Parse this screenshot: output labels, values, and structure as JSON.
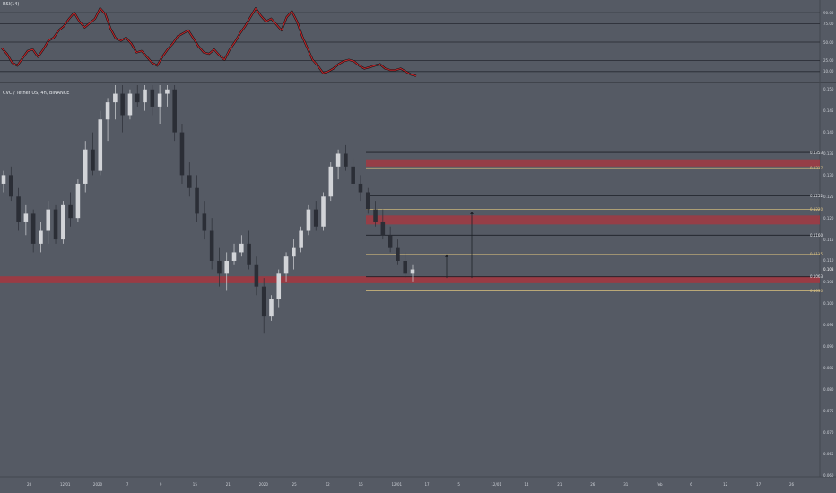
{
  "rsi_pane": {
    "title": "RSI(14)",
    "ylim": [
      0,
      100
    ],
    "levels": [
      {
        "value": 90,
        "label": "90.00"
      },
      {
        "value": 75,
        "label": "75.00"
      },
      {
        "value": 50,
        "label": "50.00"
      },
      {
        "value": 25,
        "label": "25.00"
      },
      {
        "value": 10,
        "label": "10.00"
      }
    ],
    "line_color": "#c0262c",
    "shadow_color": "#111111",
    "values": [
      42,
      34,
      22,
      18,
      28,
      38,
      40,
      30,
      40,
      52,
      56,
      66,
      72,
      82,
      90,
      78,
      70,
      76,
      82,
      96,
      88,
      68,
      55,
      52,
      56,
      48,
      36,
      38,
      30,
      22,
      18,
      30,
      40,
      48,
      58,
      62,
      66,
      55,
      44,
      36,
      34,
      40,
      32,
      26,
      40,
      50,
      62,
      72,
      84,
      96,
      86,
      78,
      82,
      74,
      66,
      84,
      92,
      78,
      58,
      42,
      26,
      18,
      8,
      10,
      14,
      20,
      24,
      26,
      24,
      18,
      14,
      16,
      18,
      20,
      14,
      12,
      12,
      14,
      10,
      6,
      4
    ]
  },
  "price_pane": {
    "title": "CVC / Tether US, 4h, BINANCE",
    "ylim": [
      0.06,
      0.151
    ],
    "price_labels": [
      "0.150",
      "0.145",
      "0.140",
      "0.135",
      "0.130",
      "0.125",
      "0.120",
      "0.115",
      "0.110",
      "0.105",
      "0.100",
      "0.095",
      "0.090",
      "0.085",
      "0.080",
      "0.075",
      "0.070",
      "0.065",
      "0.060"
    ],
    "current_price": {
      "value": 0.108,
      "label": "0.108"
    },
    "colors": {
      "up": "#d2d4d8",
      "down": "#2b2e36",
      "support_band": "#b2323a",
      "fib_line": "#c9b47a",
      "level_line": "#1c1f26"
    },
    "support_band": {
      "low": 0.1048,
      "high": 0.1064
    },
    "resistance_zones": [
      {
        "low": 0.132,
        "high": 0.1337
      },
      {
        "low": 0.1185,
        "high": 0.1206
      }
    ],
    "levels": [
      {
        "value": 0.1353,
        "label": "0.1353",
        "kind": "level"
      },
      {
        "value": 0.1317,
        "label": "0.1317",
        "kind": "fib"
      },
      {
        "value": 0.1252,
        "label": "0.1252",
        "kind": "level"
      },
      {
        "value": 0.122,
        "label": "0.1220",
        "kind": "fib"
      },
      {
        "value": 0.116,
        "label": "0.1160",
        "kind": "level"
      },
      {
        "value": 0.1115,
        "label": "0.1115",
        "kind": "fib"
      },
      {
        "value": 0.1063,
        "label": "0.1063",
        "kind": "level"
      },
      {
        "value": 0.103,
        "label": "0.1030",
        "kind": "fib"
      }
    ],
    "projections": [
      {
        "from": 0.106,
        "to": 0.1115
      },
      {
        "from": 0.106,
        "to": 0.1215
      }
    ],
    "candles": [
      [
        0.128,
        0.131,
        0.126,
        0.13
      ],
      [
        0.13,
        0.132,
        0.124,
        0.125
      ],
      [
        0.125,
        0.127,
        0.117,
        0.119
      ],
      [
        0.119,
        0.123,
        0.116,
        0.121
      ],
      [
        0.121,
        0.122,
        0.112,
        0.114
      ],
      [
        0.114,
        0.119,
        0.112,
        0.117
      ],
      [
        0.117,
        0.124,
        0.114,
        0.122
      ],
      [
        0.122,
        0.123,
        0.114,
        0.115
      ],
      [
        0.115,
        0.124,
        0.114,
        0.123
      ],
      [
        0.123,
        0.126,
        0.118,
        0.12
      ],
      [
        0.12,
        0.129,
        0.119,
        0.128
      ],
      [
        0.128,
        0.138,
        0.126,
        0.136
      ],
      [
        0.136,
        0.14,
        0.13,
        0.131
      ],
      [
        0.131,
        0.145,
        0.13,
        0.143
      ],
      [
        0.143,
        0.148,
        0.138,
        0.147
      ],
      [
        0.147,
        0.151,
        0.143,
        0.149
      ],
      [
        0.149,
        0.151,
        0.14,
        0.144
      ],
      [
        0.144,
        0.15,
        0.143,
        0.149
      ],
      [
        0.149,
        0.151,
        0.146,
        0.147
      ],
      [
        0.147,
        0.151,
        0.145,
        0.15
      ],
      [
        0.15,
        0.151,
        0.144,
        0.146
      ],
      [
        0.146,
        0.151,
        0.142,
        0.149
      ],
      [
        0.149,
        0.151,
        0.146,
        0.15
      ],
      [
        0.15,
        0.151,
        0.138,
        0.14
      ],
      [
        0.14,
        0.142,
        0.128,
        0.13
      ],
      [
        0.13,
        0.133,
        0.125,
        0.127
      ],
      [
        0.127,
        0.13,
        0.119,
        0.121
      ],
      [
        0.121,
        0.124,
        0.115,
        0.117
      ],
      [
        0.117,
        0.12,
        0.108,
        0.11
      ],
      [
        0.11,
        0.113,
        0.104,
        0.107
      ],
      [
        0.107,
        0.112,
        0.103,
        0.11
      ],
      [
        0.11,
        0.114,
        0.109,
        0.112
      ],
      [
        0.112,
        0.116,
        0.111,
        0.114
      ],
      [
        0.114,
        0.117,
        0.108,
        0.109
      ],
      [
        0.109,
        0.111,
        0.102,
        0.104
      ],
      [
        0.104,
        0.106,
        0.093,
        0.097
      ],
      [
        0.097,
        0.102,
        0.096,
        0.101
      ],
      [
        0.101,
        0.108,
        0.099,
        0.107
      ],
      [
        0.107,
        0.112,
        0.105,
        0.111
      ],
      [
        0.111,
        0.115,
        0.108,
        0.113
      ],
      [
        0.113,
        0.118,
        0.112,
        0.117
      ],
      [
        0.117,
        0.123,
        0.116,
        0.122
      ],
      [
        0.122,
        0.124,
        0.117,
        0.118
      ],
      [
        0.118,
        0.126,
        0.117,
        0.125
      ],
      [
        0.125,
        0.133,
        0.124,
        0.132
      ],
      [
        0.132,
        0.136,
        0.129,
        0.135
      ],
      [
        0.135,
        0.137,
        0.131,
        0.132
      ],
      [
        0.132,
        0.134,
        0.127,
        0.128
      ],
      [
        0.128,
        0.13,
        0.124,
        0.126
      ],
      [
        0.126,
        0.127,
        0.121,
        0.122
      ],
      [
        0.122,
        0.124,
        0.118,
        0.119
      ],
      [
        0.119,
        0.122,
        0.115,
        0.116
      ],
      [
        0.116,
        0.118,
        0.112,
        0.113
      ],
      [
        0.113,
        0.115,
        0.109,
        0.11
      ],
      [
        0.11,
        0.112,
        0.106,
        0.107
      ],
      [
        0.107,
        0.109,
        0.105,
        0.108
      ]
    ],
    "time_labels": [
      "28",
      "12/01",
      "2020",
      "7",
      "9",
      "15",
      "21",
      "2020",
      "25",
      "12",
      "16",
      "12/01",
      "17",
      "5",
      "12/01",
      "14",
      "21",
      "26",
      "31",
      "feb",
      "6",
      "12",
      "17",
      "26"
    ]
  }
}
